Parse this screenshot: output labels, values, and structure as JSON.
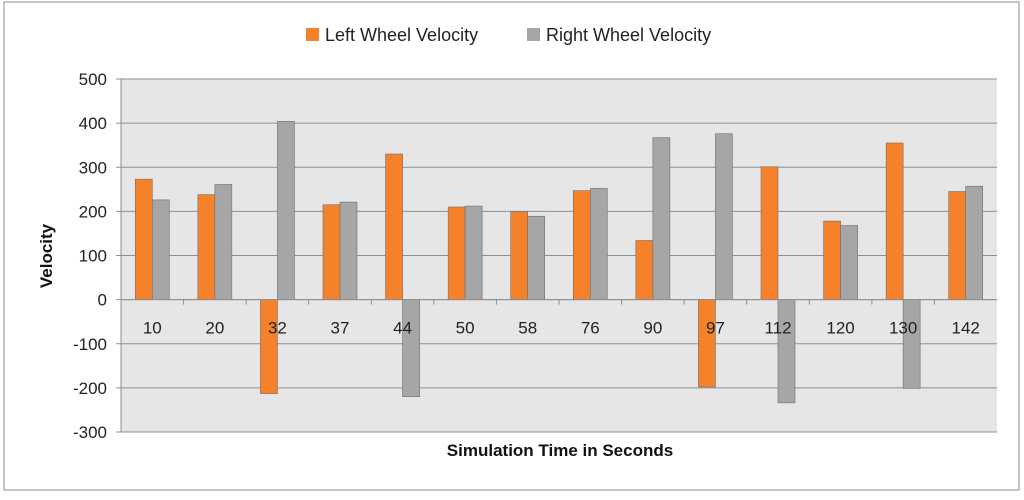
{
  "chart_data": {
    "type": "bar",
    "title": "",
    "xlabel": "Simulation Time in Seconds",
    "ylabel": "Velocity",
    "categories": [
      "10",
      "20",
      "32",
      "37",
      "44",
      "50",
      "58",
      "76",
      "90",
      "97",
      "112",
      "120",
      "130",
      "142"
    ],
    "series": [
      {
        "name": "Left Wheel Velocity",
        "color": "#f5822a",
        "values": [
          273,
          238,
          -213,
          215,
          330,
          210,
          199,
          247,
          134,
          -198,
          301,
          178,
          355,
          245
        ]
      },
      {
        "name": "Right Wheel Velocity",
        "color": "#a6a6a6",
        "values": [
          226,
          261,
          404,
          221,
          -220,
          212,
          189,
          252,
          367,
          376,
          -234,
          168,
          -201,
          257
        ]
      }
    ],
    "ylim": [
      -300,
      500
    ],
    "yticks": [
      "500",
      "400",
      "300",
      "200",
      "100",
      "0",
      "-100",
      "-200",
      "-300"
    ],
    "grid": true,
    "legend": "top-center",
    "plot_background": "#e6e6e6"
  }
}
